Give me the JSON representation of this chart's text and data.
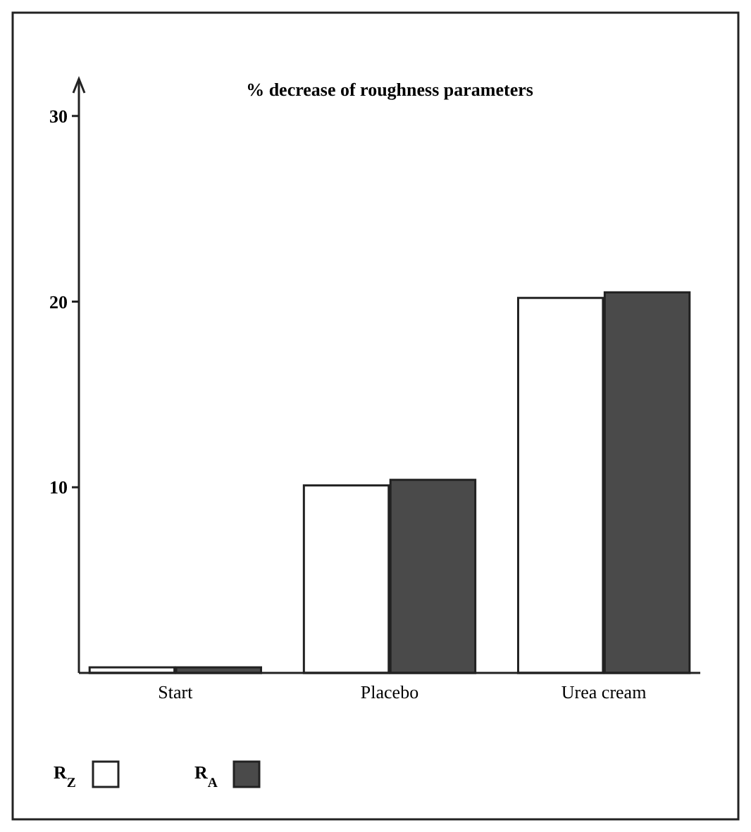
{
  "chart_data": {
    "type": "bar",
    "title": "% decrease of roughness parameters",
    "categories": [
      "Start",
      "Placebo",
      "Urea cream"
    ],
    "series": [
      {
        "name": "R$_{Z}$",
        "color": "#ffffff",
        "values": [
          0.3,
          10.1,
          20.2
        ]
      },
      {
        "name": "R$_{A}$",
        "color": "#4a4a4a",
        "values": [
          0.3,
          10.4,
          20.5
        ]
      }
    ],
    "ylim": [
      0,
      32
    ],
    "yticks": [
      10,
      20,
      30
    ],
    "grid": false,
    "legend": "bottom left"
  }
}
